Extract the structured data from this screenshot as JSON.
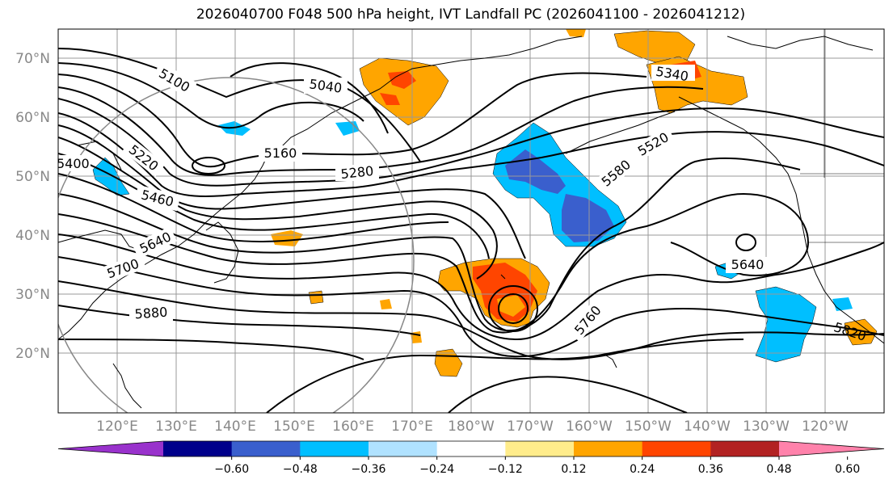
{
  "title": "2026040700 F048 500 hPa height, IVT Landfall PC (2026041100 - 2026041212)",
  "lat_labels": [
    "70°N",
    "60°N",
    "50°N",
    "40°N",
    "30°N",
    "20°N"
  ],
  "lon_labels": [
    "120°E",
    "130°E",
    "140°E",
    "150°E",
    "160°E",
    "170°E",
    "180°W",
    "170°W",
    "160°W",
    "150°W",
    "140°W",
    "130°W",
    "120°W"
  ],
  "contour_labels": [
    "5100",
    "5040",
    "5340",
    "5220",
    "5160",
    "5280",
    "5520",
    "5580",
    "5400",
    "5460",
    "5640",
    "5640",
    "5700",
    "5880",
    "5760",
    "5820"
  ],
  "colorbar": {
    "colors": [
      "#9932cc",
      "#00008b",
      "#3a5fcd",
      "#00bfff",
      "#b0e2ff",
      "#ffffff",
      "#ffec8b",
      "#ffa500",
      "#ff4500",
      "#b22222",
      "#ff82ab"
    ],
    "ticks": [
      "−0.60",
      "−0.48",
      "−0.36",
      "−0.24",
      "−0.12",
      "0.12",
      "0.24",
      "0.36",
      "0.48",
      "0.60"
    ]
  }
}
